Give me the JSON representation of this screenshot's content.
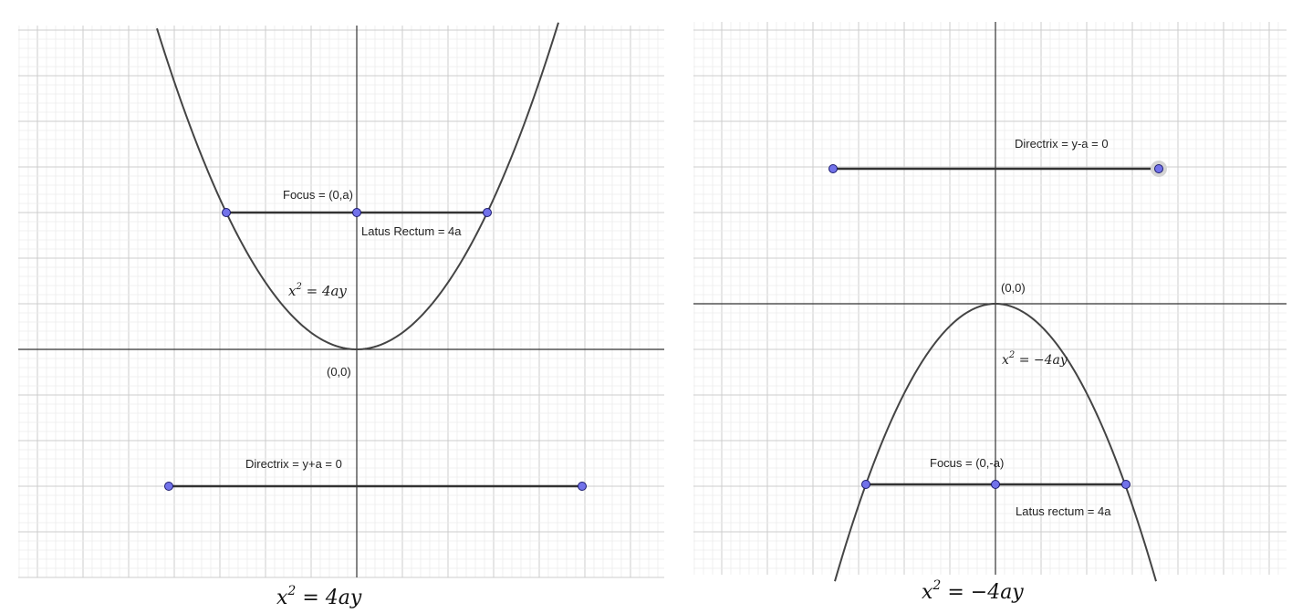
{
  "panels": [
    {
      "id": "left",
      "curve_equation": "x^2 = 4ay",
      "focus_label": "Focus = (0,a)",
      "latus_label": "Latus Rectum = 4a",
      "origin_label": "(0,0)",
      "directrix_label": "Directrix = y+a = 0",
      "caption": "x^2 = 4ay"
    },
    {
      "id": "right",
      "curve_equation": "x^2 = -4ay",
      "focus_label": "Focus = (0,-a)",
      "latus_label": "Latus rectum = 4a",
      "origin_label": "(0,0)",
      "directrix_label": "Directrix = y-a = 0",
      "caption": "x^2 = -4ay"
    }
  ],
  "colors": {
    "curve": "#444444",
    "axis": "#333333",
    "point_fill": "#7272ea",
    "point_stroke": "#1a1a6e",
    "grid_major": "#cccccc",
    "grid_minor": "#ececec"
  }
}
